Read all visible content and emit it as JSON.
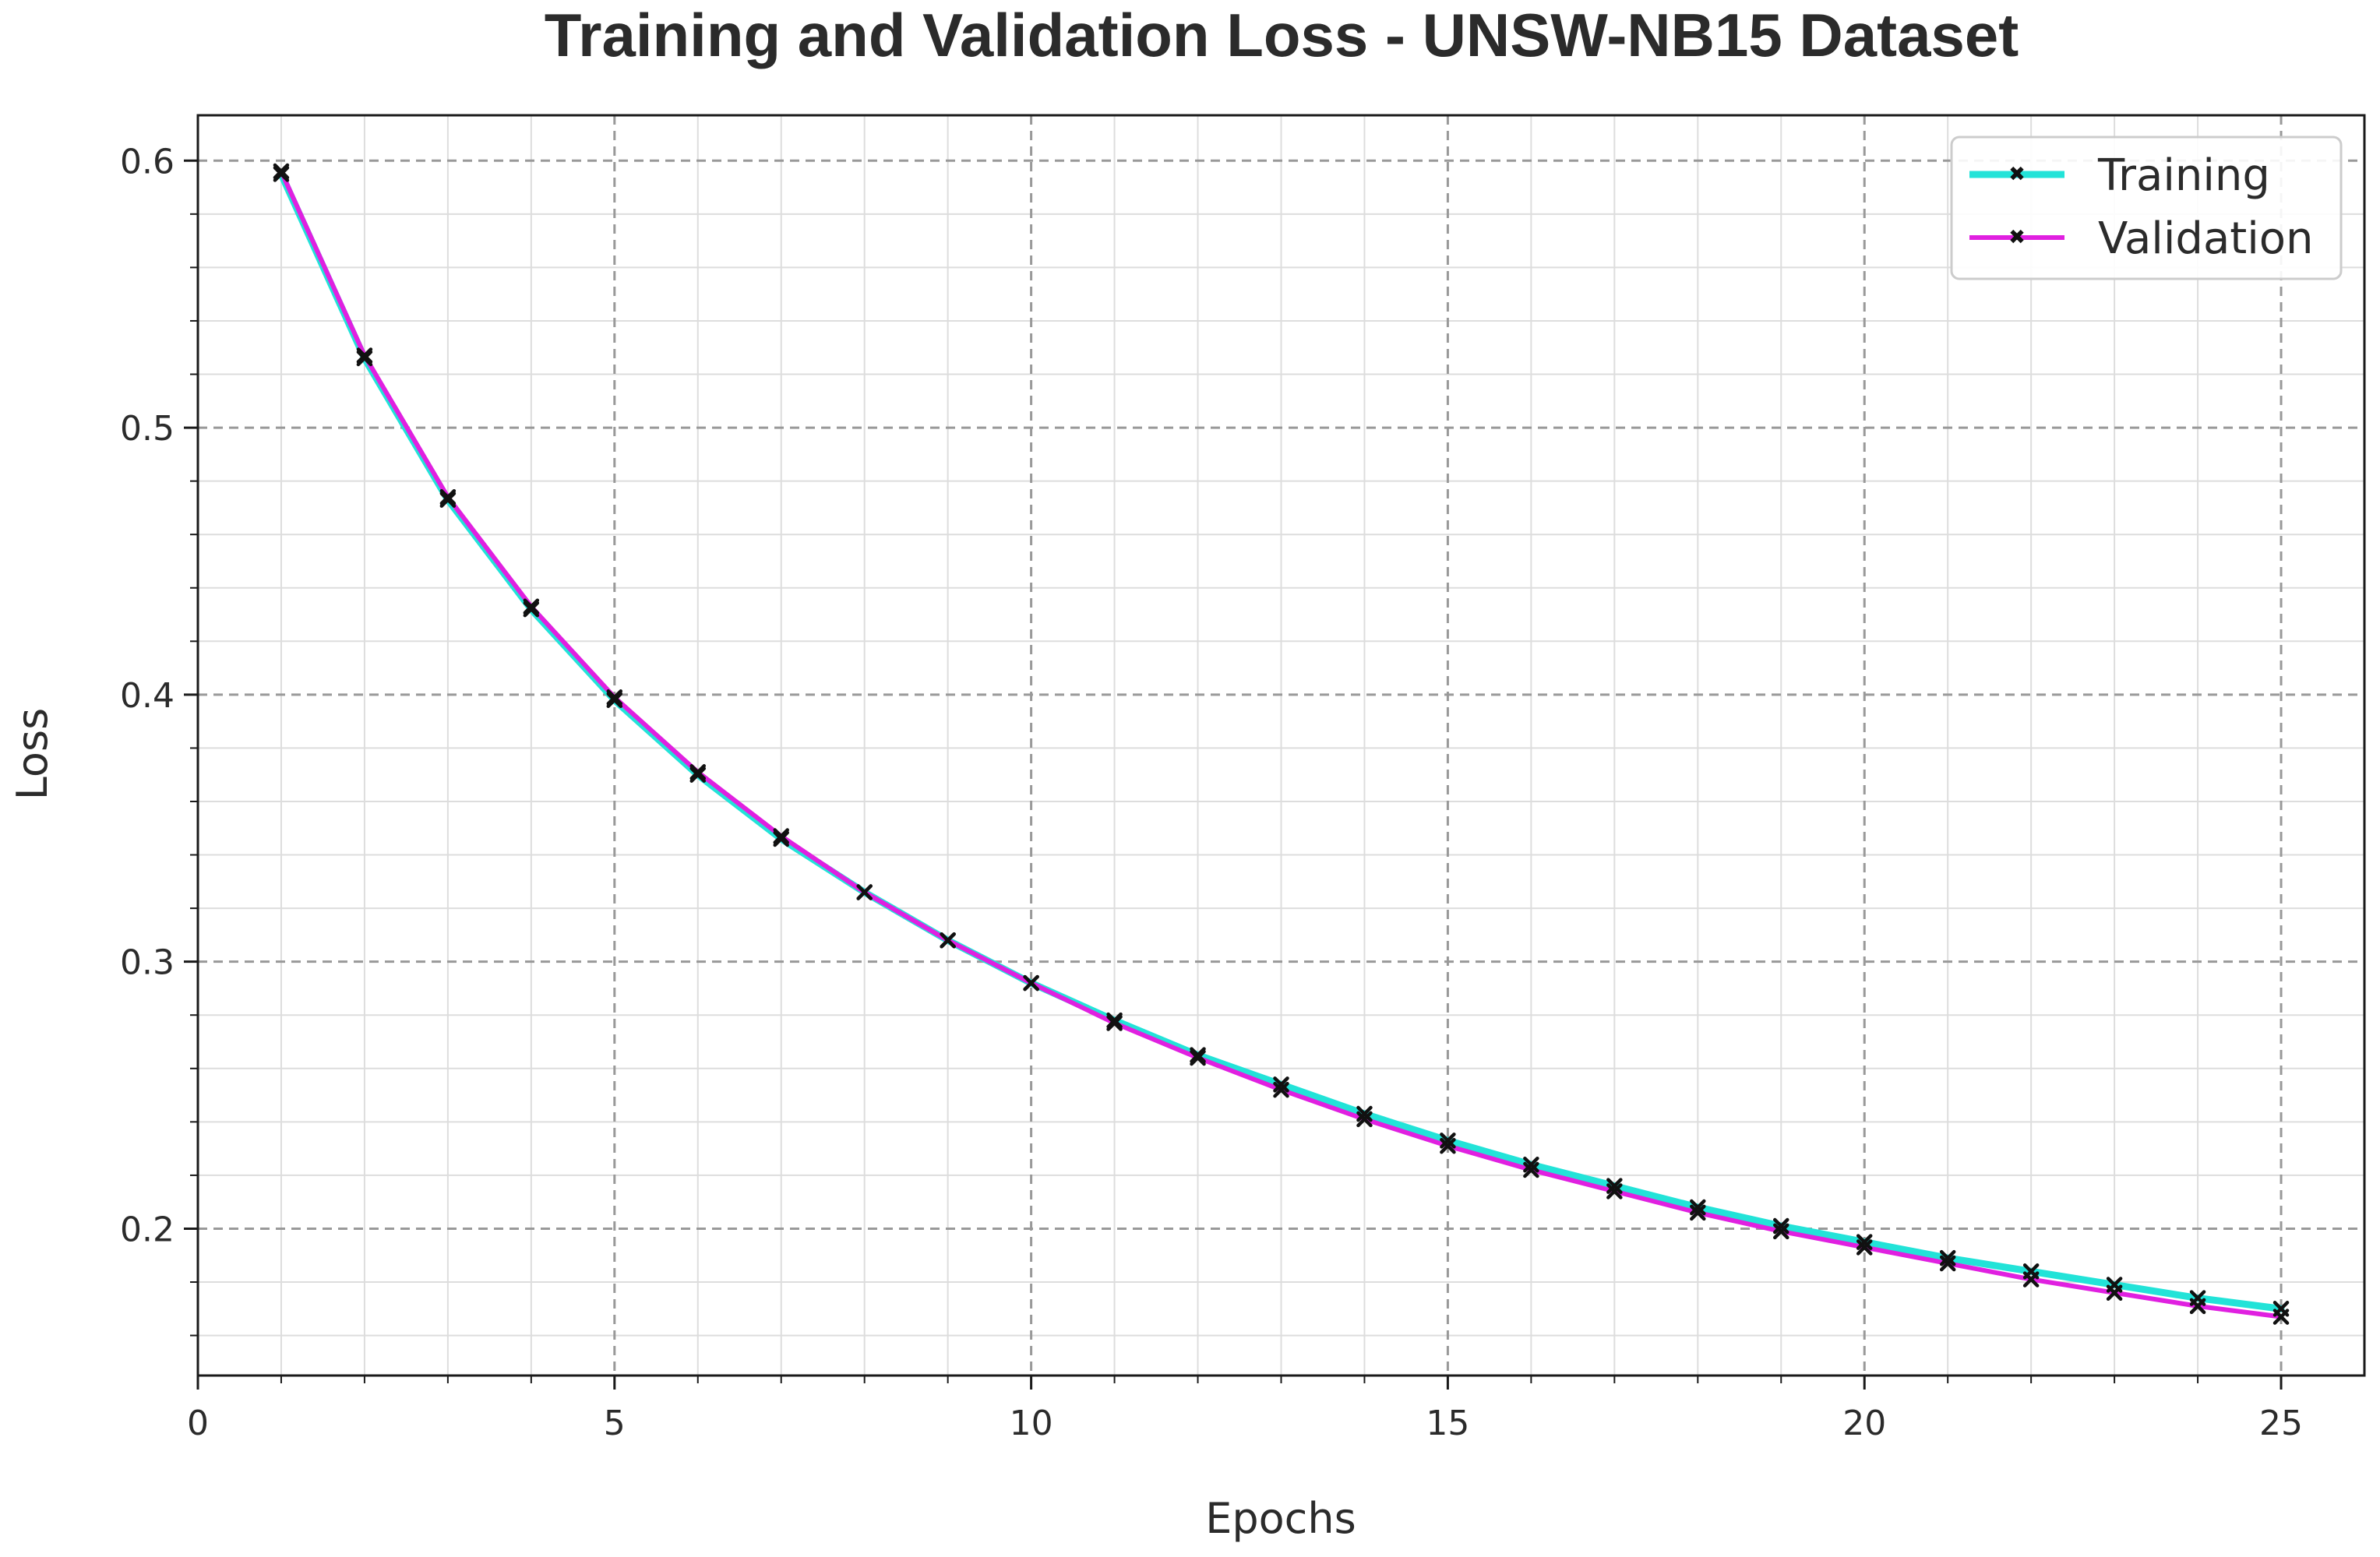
{
  "chart_data": {
    "type": "line",
    "title": "Training and Validation Loss - UNSW-NB15 Dataset",
    "xlabel": "Epochs",
    "ylabel": "Loss",
    "xlim": [
      0,
      26
    ],
    "ylim": [
      0.145,
      0.617
    ],
    "x_ticks": [
      0,
      5,
      10,
      15,
      20,
      25
    ],
    "x_tick_labels": [
      "0",
      "5",
      "10",
      "15",
      "20",
      "25"
    ],
    "y_ticks": [
      0.2,
      0.3,
      0.4,
      0.5,
      0.6
    ],
    "y_tick_labels": [
      "0.2",
      "0.3",
      "0.4",
      "0.5",
      "0.6"
    ],
    "grid": true,
    "minor_grid": true,
    "legend_position": "top-right",
    "x": [
      1,
      2,
      3,
      4,
      5,
      6,
      7,
      8,
      9,
      10,
      11,
      12,
      13,
      14,
      15,
      16,
      17,
      18,
      19,
      20,
      21,
      22,
      23,
      24,
      25
    ],
    "series": [
      {
        "name": "Training",
        "color": "#22e3d8",
        "values": [
          0.595,
          0.526,
          0.473,
          0.432,
          0.398,
          0.37,
          0.346,
          0.326,
          0.308,
          0.292,
          0.278,
          0.265,
          0.254,
          0.243,
          0.233,
          0.224,
          0.216,
          0.208,
          0.201,
          0.195,
          0.189,
          0.184,
          0.179,
          0.174,
          0.17
        ]
      },
      {
        "name": "Validation",
        "color": "#e020e0",
        "values": [
          0.596,
          0.527,
          0.474,
          0.433,
          0.399,
          0.371,
          0.347,
          0.326,
          0.308,
          0.292,
          0.277,
          0.264,
          0.252,
          0.241,
          0.231,
          0.222,
          0.214,
          0.206,
          0.199,
          0.193,
          0.187,
          0.181,
          0.176,
          0.171,
          0.167
        ]
      }
    ]
  }
}
